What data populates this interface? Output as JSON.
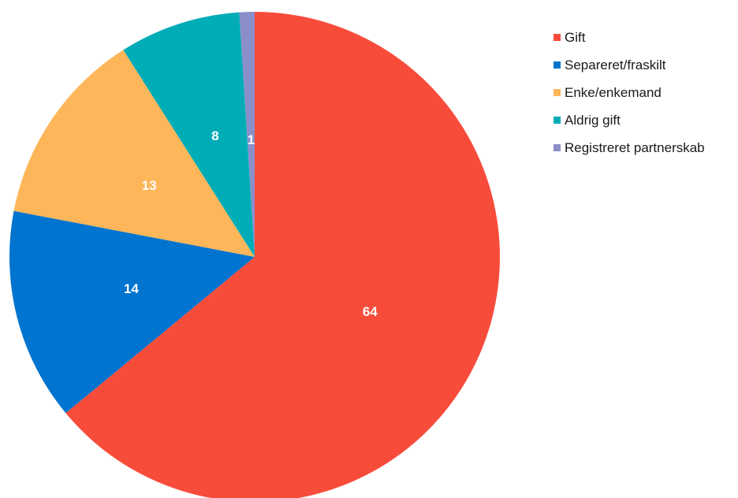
{
  "chart_data": {
    "type": "pie",
    "categories": [
      "Gift",
      "Separeret/fraskilt",
      "Enke/enkemand",
      "Aldrig gift",
      "Registreret partnerskab"
    ],
    "values": [
      64,
      14,
      13,
      8,
      1
    ],
    "data_labels": [
      "64",
      "14",
      "13",
      "8",
      "1"
    ],
    "colors": [
      "#f84c3b",
      "#0074cf",
      "#fdb659",
      "#00adb7",
      "#8b8fc9"
    ],
    "start": "12 o'clock",
    "direction": "clockwise",
    "legend_position": "right"
  }
}
